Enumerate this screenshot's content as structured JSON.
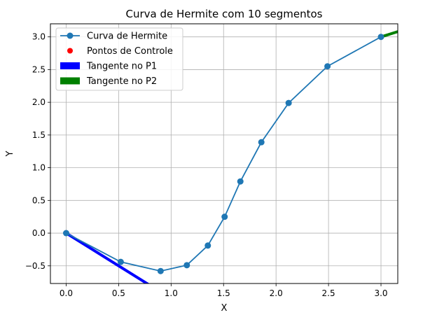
{
  "chart_data": {
    "type": "line",
    "title": "Curva de Hermite com 10 segmentos",
    "xlabel": "X",
    "ylabel": "Y",
    "xlim": [
      -0.15,
      3.16
    ],
    "ylim": [
      -0.77,
      3.2
    ],
    "xticks": [
      0.0,
      0.5,
      1.0,
      1.5,
      2.0,
      2.5,
      3.0
    ],
    "xtick_labels": [
      "0.0",
      "0.5",
      "1.0",
      "1.5",
      "2.0",
      "2.5",
      "3.0"
    ],
    "yticks": [
      -0.5,
      0.0,
      0.5,
      1.0,
      1.5,
      2.0,
      2.5,
      3.0
    ],
    "ytick_labels": [
      "−0.5",
      "0.0",
      "0.5",
      "1.0",
      "1.5",
      "2.0",
      "2.5",
      "3.0"
    ],
    "grid": true,
    "legend_position": "top-left",
    "series": [
      {
        "name": "Curva de Hermite",
        "kind": "line-markers",
        "color": "#1f77b4",
        "x": [
          0.0,
          0.52,
          0.9,
          1.15,
          1.35,
          1.51,
          1.66,
          1.86,
          2.12,
          2.49,
          3.0
        ],
        "y": [
          0.0,
          -0.44,
          -0.58,
          -0.49,
          -0.19,
          0.25,
          0.79,
          1.39,
          1.99,
          2.55,
          3.0
        ]
      },
      {
        "name": "Pontos de Controle",
        "kind": "scatter",
        "color": "#ff0000",
        "x": [],
        "y": []
      },
      {
        "name": "Tangente no P1",
        "kind": "line",
        "color": "#0000ff",
        "x": [
          0.0,
          1.0
        ],
        "y": [
          0.0,
          -1.0
        ]
      },
      {
        "name": "Tangente no P2",
        "kind": "line",
        "color": "#008000",
        "x": [
          3.0,
          3.5
        ],
        "y": [
          3.0,
          3.25
        ]
      }
    ]
  }
}
